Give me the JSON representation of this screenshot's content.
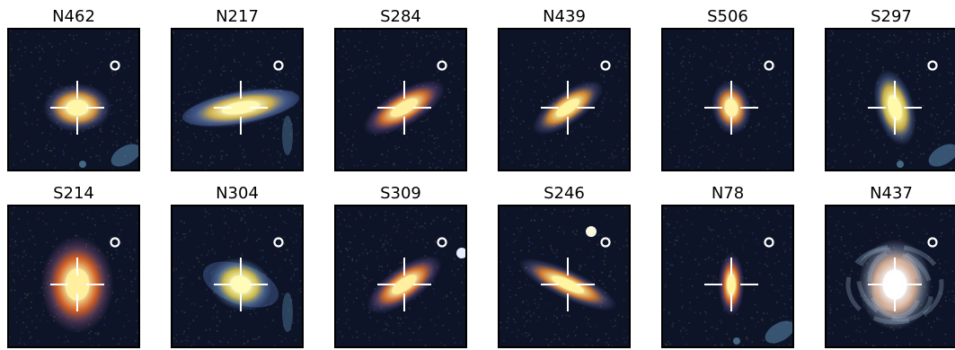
{
  "figure": {
    "rows": [
      {
        "cells": [
          {
            "id": "N462",
            "galaxy": {
              "angle": 0,
              "rx": 28,
              "ry": 15,
              "core": "#fff6a8",
              "mid": "#f2a43a",
              "halo": "#6c74b8"
            },
            "extras": [
              "blue-patch"
            ]
          },
          {
            "id": "N217",
            "galaxy": {
              "angle": -10,
              "rx": 48,
              "ry": 11,
              "core": "#fff8b0",
              "mid": "#e8c24a",
              "halo": "#6f8bd0"
            },
            "extras": [
              "blue-arms"
            ]
          },
          {
            "id": "S284",
            "galaxy": {
              "angle": -30,
              "rx": 38,
              "ry": 11,
              "core": "#fff0a0",
              "mid": "#f07a2c",
              "halo": "#7a5aa0"
            },
            "extras": []
          },
          {
            "id": "N439",
            "galaxy": {
              "angle": -35,
              "rx": 34,
              "ry": 10,
              "core": "#fff4a0",
              "mid": "#f29a30",
              "halo": "#6a6aa8"
            },
            "extras": []
          },
          {
            "id": "S506",
            "galaxy": {
              "angle": 80,
              "rx": 22,
              "ry": 12,
              "core": "#fff4a8",
              "mid": "#f2882e",
              "halo": "#6a70b0"
            },
            "extras": []
          },
          {
            "id": "S297",
            "galaxy": {
              "angle": 75,
              "rx": 32,
              "ry": 12,
              "core": "#fffaa8",
              "mid": "#e8c848",
              "halo": "#6f8bd0"
            },
            "extras": [
              "blue-patch"
            ]
          }
        ]
      },
      {
        "cells": [
          {
            "id": "S214",
            "galaxy": {
              "angle": 0,
              "rx": 30,
              "ry": 30,
              "core": "#fff0a0",
              "mid": "#f06a24",
              "halo": "#8a5a8a"
            },
            "extras": []
          },
          {
            "id": "N304",
            "galaxy": {
              "angle": 20,
              "rx": 26,
              "ry": 16,
              "core": "#fffcb8",
              "mid": "#e8d04a",
              "halo": "#6f9ad0"
            },
            "extras": [
              "blue-arms"
            ]
          },
          {
            "id": "S309",
            "galaxy": {
              "angle": -35,
              "rx": 36,
              "ry": 11,
              "core": "#fff0a0",
              "mid": "#f07a2c",
              "halo": "#7a60a8"
            },
            "extras": [
              "star-right"
            ]
          },
          {
            "id": "S246",
            "galaxy": {
              "angle": 25,
              "rx": 44,
              "ry": 9,
              "core": "#fff4a0",
              "mid": "#f08a30",
              "halo": "#6a6aa8"
            },
            "extras": [
              "star-top"
            ]
          },
          {
            "id": "N78",
            "galaxy": {
              "angle": 90,
              "rx": 26,
              "ry": 8,
              "core": "#fff4a0",
              "mid": "#f07024",
              "halo": "#7a5aa0"
            },
            "extras": [
              "blue-patch"
            ]
          },
          {
            "id": "N437",
            "galaxy": {
              "angle": 0,
              "rx": 30,
              "ry": 28,
              "core": "#ffffff",
              "mid": "#f2c0a0",
              "halo": "#b0c0d8"
            },
            "extras": [
              "spiral"
            ]
          }
        ]
      }
    ],
    "colors": {
      "background": "#0e1428",
      "crosshair": "#ffffff",
      "marker": "#ffffff",
      "frame": "#000000"
    }
  }
}
